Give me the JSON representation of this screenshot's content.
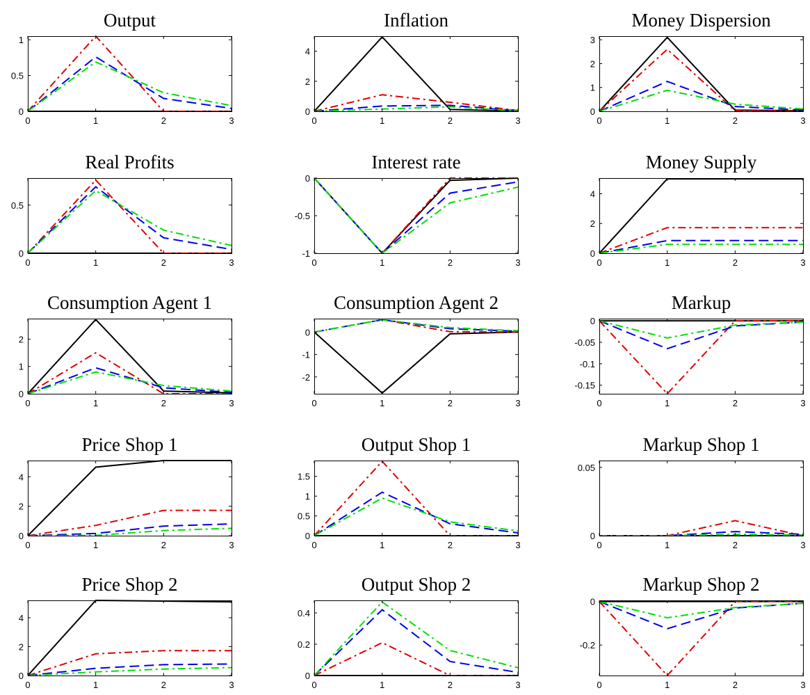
{
  "figure": {
    "colors": {
      "black": "#000000",
      "red": "#e00000",
      "blue": "#0000e6",
      "green": "#00e000"
    },
    "line_styles": [
      "solid",
      "dash-dot",
      "dashed",
      "dash-dot"
    ]
  },
  "chart_data": [
    {
      "type": "line",
      "title": "Output",
      "x": [
        0,
        1,
        2,
        3
      ],
      "xticks": [
        "0",
        "1",
        "2",
        "3"
      ],
      "ylim": [
        0,
        1.05
      ],
      "yticks": [
        0,
        0.5,
        1
      ],
      "ytick_labels": [
        "0",
        "0.5",
        "1"
      ],
      "series": [
        {
          "color": "black",
          "style": "solid",
          "values": [
            0,
            0,
            0,
            0
          ]
        },
        {
          "color": "red",
          "style": "dashdot",
          "values": [
            0,
            1.05,
            0,
            0
          ]
        },
        {
          "color": "blue",
          "style": "dashed",
          "values": [
            0,
            0.76,
            0.18,
            0.04
          ]
        },
        {
          "color": "green",
          "style": "dashdot",
          "values": [
            0,
            0.69,
            0.26,
            0.08
          ]
        }
      ]
    },
    {
      "type": "line",
      "title": "Inflation",
      "x": [
        0,
        1,
        2,
        3
      ],
      "xticks": [
        "0",
        "1",
        "2",
        "3"
      ],
      "ylim": [
        0,
        5
      ],
      "yticks": [
        0,
        2,
        4
      ],
      "ytick_labels": [
        "0",
        "2",
        "4"
      ],
      "series": [
        {
          "color": "black",
          "style": "solid",
          "values": [
            0,
            4.95,
            0.12,
            0.02
          ]
        },
        {
          "color": "red",
          "style": "dashdot",
          "values": [
            0,
            1.1,
            0.6,
            0.05
          ]
        },
        {
          "color": "blue",
          "style": "dashed",
          "values": [
            0,
            0.35,
            0.4,
            0.04
          ]
        },
        {
          "color": "green",
          "style": "dashdot",
          "values": [
            0,
            0.15,
            0.3,
            0.03
          ]
        }
      ]
    },
    {
      "type": "line",
      "title": "Money Dispersion",
      "x": [
        0,
        1,
        2,
        3
      ],
      "xticks": [
        "0",
        "1",
        "2",
        "3"
      ],
      "ylim": [
        0,
        3.15
      ],
      "yticks": [
        0,
        1,
        2,
        3
      ],
      "ytick_labels": [
        "0",
        "1",
        "2",
        "3"
      ],
      "series": [
        {
          "color": "black",
          "style": "solid",
          "values": [
            0,
            3.1,
            0.05,
            0.02
          ]
        },
        {
          "color": "red",
          "style": "dashdot",
          "values": [
            0,
            2.6,
            0.02,
            0.01
          ]
        },
        {
          "color": "blue",
          "style": "dashed",
          "values": [
            0,
            1.25,
            0.2,
            0.05
          ]
        },
        {
          "color": "green",
          "style": "dashdot",
          "values": [
            0,
            0.88,
            0.3,
            0.1
          ]
        }
      ]
    },
    {
      "type": "line",
      "title": "Real Profits",
      "x": [
        0,
        1,
        2,
        3
      ],
      "xticks": [
        "0",
        "1",
        "2",
        "3"
      ],
      "ylim": [
        0,
        0.78
      ],
      "yticks": [
        0,
        0.5
      ],
      "ytick_labels": [
        "0",
        "0.5"
      ],
      "series": [
        {
          "color": "black",
          "style": "solid",
          "values": [
            0,
            0,
            0,
            0
          ]
        },
        {
          "color": "red",
          "style": "dashdot",
          "values": [
            0,
            0.76,
            0,
            0
          ]
        },
        {
          "color": "blue",
          "style": "dashed",
          "values": [
            0,
            0.69,
            0.16,
            0.04
          ]
        },
        {
          "color": "green",
          "style": "dashdot",
          "values": [
            0,
            0.65,
            0.24,
            0.08
          ]
        }
      ]
    },
    {
      "type": "line",
      "title": "Interest rate",
      "x": [
        0,
        1,
        2,
        3
      ],
      "xticks": [
        "0",
        "1",
        "2",
        "3"
      ],
      "ylim": [
        -1,
        0
      ],
      "yticks": [
        -1,
        -0.5,
        0
      ],
      "ytick_labels": [
        "-1",
        "-0.5",
        "0"
      ],
      "series": [
        {
          "color": "black",
          "style": "solid",
          "values": [
            0,
            -1,
            -0.03,
            0
          ]
        },
        {
          "color": "red",
          "style": "dashdot",
          "values": [
            0,
            -1,
            0,
            0
          ]
        },
        {
          "color": "blue",
          "style": "dashed",
          "values": [
            0,
            -1,
            -0.2,
            -0.05
          ]
        },
        {
          "color": "green",
          "style": "dashdot",
          "values": [
            0,
            -1,
            -0.33,
            -0.12
          ]
        }
      ]
    },
    {
      "type": "line",
      "title": "Money Supply",
      "x": [
        0,
        1,
        2,
        3
      ],
      "xticks": [
        "0",
        "1",
        "2",
        "3"
      ],
      "ylim": [
        0,
        5.05
      ],
      "yticks": [
        0,
        2,
        4
      ],
      "ytick_labels": [
        "0",
        "2",
        "4"
      ],
      "series": [
        {
          "color": "black",
          "style": "solid",
          "values": [
            0,
            5,
            5,
            5
          ]
        },
        {
          "color": "red",
          "style": "dashdot",
          "values": [
            0,
            1.72,
            1.72,
            1.72
          ]
        },
        {
          "color": "blue",
          "style": "dashed",
          "values": [
            0,
            0.85,
            0.85,
            0.85
          ]
        },
        {
          "color": "green",
          "style": "dashdot",
          "values": [
            0,
            0.6,
            0.6,
            0.6
          ]
        }
      ]
    },
    {
      "type": "line",
      "title": "Consumption Agent 1",
      "x": [
        0,
        1,
        2,
        3
      ],
      "xticks": [
        "0",
        "1",
        "2",
        "3"
      ],
      "ylim": [
        0,
        2.75
      ],
      "yticks": [
        0,
        1,
        2
      ],
      "ytick_labels": [
        "0",
        "1",
        "2"
      ],
      "series": [
        {
          "color": "black",
          "style": "solid",
          "values": [
            0,
            2.72,
            0.1,
            0.03
          ]
        },
        {
          "color": "red",
          "style": "dashdot",
          "values": [
            0,
            1.5,
            0,
            0
          ]
        },
        {
          "color": "blue",
          "style": "dashed",
          "values": [
            0,
            0.95,
            0.22,
            0.05
          ]
        },
        {
          "color": "green",
          "style": "dashdot",
          "values": [
            0,
            0.8,
            0.3,
            0.1
          ]
        }
      ]
    },
    {
      "type": "line",
      "title": "Consumption Agent 2",
      "x": [
        0,
        1,
        2,
        3
      ],
      "xticks": [
        "0",
        "1",
        "2",
        "3"
      ],
      "ylim": [
        -2.75,
        0.6
      ],
      "yticks": [
        -2,
        -1,
        0
      ],
      "ytick_labels": [
        "-2",
        "-1",
        "0"
      ],
      "series": [
        {
          "color": "black",
          "style": "solid",
          "values": [
            0,
            -2.72,
            -0.08,
            0
          ]
        },
        {
          "color": "red",
          "style": "dashdot",
          "values": [
            0,
            0.55,
            0.02,
            0
          ]
        },
        {
          "color": "blue",
          "style": "dashed",
          "values": [
            0,
            0.55,
            0.15,
            0.04
          ]
        },
        {
          "color": "green",
          "style": "dashdot",
          "values": [
            0,
            0.55,
            0.2,
            0.06
          ]
        }
      ]
    },
    {
      "type": "line",
      "title": "Markup",
      "x": [
        0,
        1,
        2,
        3
      ],
      "xticks": [
        "0",
        "1",
        "2",
        "3"
      ],
      "ylim": [
        -0.17,
        0.005
      ],
      "yticks": [
        -0.15,
        -0.1,
        -0.05,
        0
      ],
      "ytick_labels": [
        "-0.15",
        "-0.1",
        "-0.05",
        "0"
      ],
      "series": [
        {
          "color": "black",
          "style": "solid",
          "values": [
            0,
            0,
            0,
            0
          ]
        },
        {
          "color": "red",
          "style": "dashdot",
          "values": [
            0,
            -0.17,
            0,
            0
          ]
        },
        {
          "color": "blue",
          "style": "dashed",
          "values": [
            0,
            -0.065,
            -0.012,
            -0.003
          ]
        },
        {
          "color": "green",
          "style": "dashdot",
          "values": [
            0,
            -0.04,
            -0.01,
            -0.003
          ]
        }
      ]
    },
    {
      "type": "line",
      "title": "Price Shop 1",
      "x": [
        0,
        1,
        2,
        3
      ],
      "xticks": [
        "0",
        "1",
        "2",
        "3"
      ],
      "ylim": [
        0,
        5.1
      ],
      "yticks": [
        0,
        2,
        4
      ],
      "ytick_labels": [
        "0",
        "2",
        "4"
      ],
      "series": [
        {
          "color": "black",
          "style": "solid",
          "values": [
            0,
            4.65,
            5.1,
            5.1
          ]
        },
        {
          "color": "red",
          "style": "dashdot",
          "values": [
            0,
            0.7,
            1.72,
            1.72
          ]
        },
        {
          "color": "blue",
          "style": "dashed",
          "values": [
            0,
            0.15,
            0.65,
            0.8
          ]
        },
        {
          "color": "green",
          "style": "dashdot",
          "values": [
            0,
            0.02,
            0.35,
            0.5
          ]
        }
      ]
    },
    {
      "type": "line",
      "title": "Output Shop 1",
      "x": [
        0,
        1,
        2,
        3
      ],
      "xticks": [
        "0",
        "1",
        "2",
        "3"
      ],
      "ylim": [
        0,
        1.9
      ],
      "yticks": [
        0,
        0.5,
        1,
        1.5
      ],
      "ytick_labels": [
        "0",
        "0.5",
        "1",
        "1.5"
      ],
      "series": [
        {
          "color": "black",
          "style": "solid",
          "values": [
            0,
            0,
            0,
            0
          ]
        },
        {
          "color": "red",
          "style": "dashdot",
          "values": [
            0,
            1.88,
            0,
            0
          ]
        },
        {
          "color": "blue",
          "style": "dashed",
          "values": [
            0,
            1.1,
            0.3,
            0.07
          ]
        },
        {
          "color": "green",
          "style": "dashdot",
          "values": [
            0,
            0.95,
            0.35,
            0.12
          ]
        }
      ]
    },
    {
      "type": "line",
      "title": "Markup Shop 1",
      "x": [
        0,
        1,
        2,
        3
      ],
      "xticks": [
        "0",
        "1",
        "2",
        "3"
      ],
      "ylim": [
        0,
        0.055
      ],
      "yticks": [
        0,
        0.05
      ],
      "ytick_labels": [
        "0",
        "0.05"
      ],
      "series": [
        {
          "color": "black",
          "style": "solid",
          "values": [
            0,
            0,
            0,
            0
          ]
        },
        {
          "color": "red",
          "style": "dashdot",
          "values": [
            0,
            0,
            0.011,
            0
          ]
        },
        {
          "color": "blue",
          "style": "dashed",
          "values": [
            0,
            0,
            0.003,
            0.001
          ]
        },
        {
          "color": "green",
          "style": "dashdot",
          "values": [
            0,
            0,
            0.001,
            0.0005
          ]
        }
      ]
    },
    {
      "type": "line",
      "title": "Price Shop 2",
      "x": [
        0,
        1,
        2,
        3
      ],
      "xticks": [
        "0",
        "1",
        "2",
        "3"
      ],
      "ylim": [
        0,
        5.2
      ],
      "yticks": [
        0,
        2,
        4
      ],
      "ytick_labels": [
        "0",
        "2",
        "4"
      ],
      "series": [
        {
          "color": "black",
          "style": "solid",
          "values": [
            0,
            5.2,
            5.15,
            5.1
          ]
        },
        {
          "color": "red",
          "style": "dashdot",
          "values": [
            0,
            1.5,
            1.72,
            1.72
          ]
        },
        {
          "color": "blue",
          "style": "dashed",
          "values": [
            0,
            0.5,
            0.75,
            0.8
          ]
        },
        {
          "color": "green",
          "style": "dashdot",
          "values": [
            0,
            0.25,
            0.45,
            0.55
          ]
        }
      ]
    },
    {
      "type": "line",
      "title": "Output Shop 2",
      "x": [
        0,
        1,
        2,
        3
      ],
      "xticks": [
        "0",
        "1",
        "2",
        "3"
      ],
      "ylim": [
        0,
        0.48
      ],
      "yticks": [
        0,
        0.2,
        0.4
      ],
      "ytick_labels": [
        "0",
        "0.2",
        "0.4"
      ],
      "series": [
        {
          "color": "black",
          "style": "solid",
          "values": [
            0,
            0,
            0,
            0
          ]
        },
        {
          "color": "red",
          "style": "dashdot",
          "values": [
            0,
            0.21,
            0,
            0
          ]
        },
        {
          "color": "blue",
          "style": "dashed",
          "values": [
            0,
            0.42,
            0.09,
            0.02
          ]
        },
        {
          "color": "green",
          "style": "dashdot",
          "values": [
            0,
            0.47,
            0.16,
            0.05
          ]
        }
      ]
    },
    {
      "type": "line",
      "title": "Markup Shop 2",
      "x": [
        0,
        1,
        2,
        3
      ],
      "xticks": [
        "0",
        "1",
        "2",
        "3"
      ],
      "ylim": [
        -0.34,
        0.005
      ],
      "yticks": [
        -0.2,
        0
      ],
      "ytick_labels": [
        "-0.2",
        "0"
      ],
      "series": [
        {
          "color": "black",
          "style": "solid",
          "values": [
            0,
            0,
            0,
            0
          ]
        },
        {
          "color": "red",
          "style": "dashdot",
          "values": [
            0,
            -0.34,
            0,
            0
          ]
        },
        {
          "color": "blue",
          "style": "dashed",
          "values": [
            0,
            -0.125,
            -0.03,
            -0.008
          ]
        },
        {
          "color": "green",
          "style": "dashdot",
          "values": [
            0,
            -0.075,
            -0.028,
            -0.008
          ]
        }
      ]
    }
  ]
}
